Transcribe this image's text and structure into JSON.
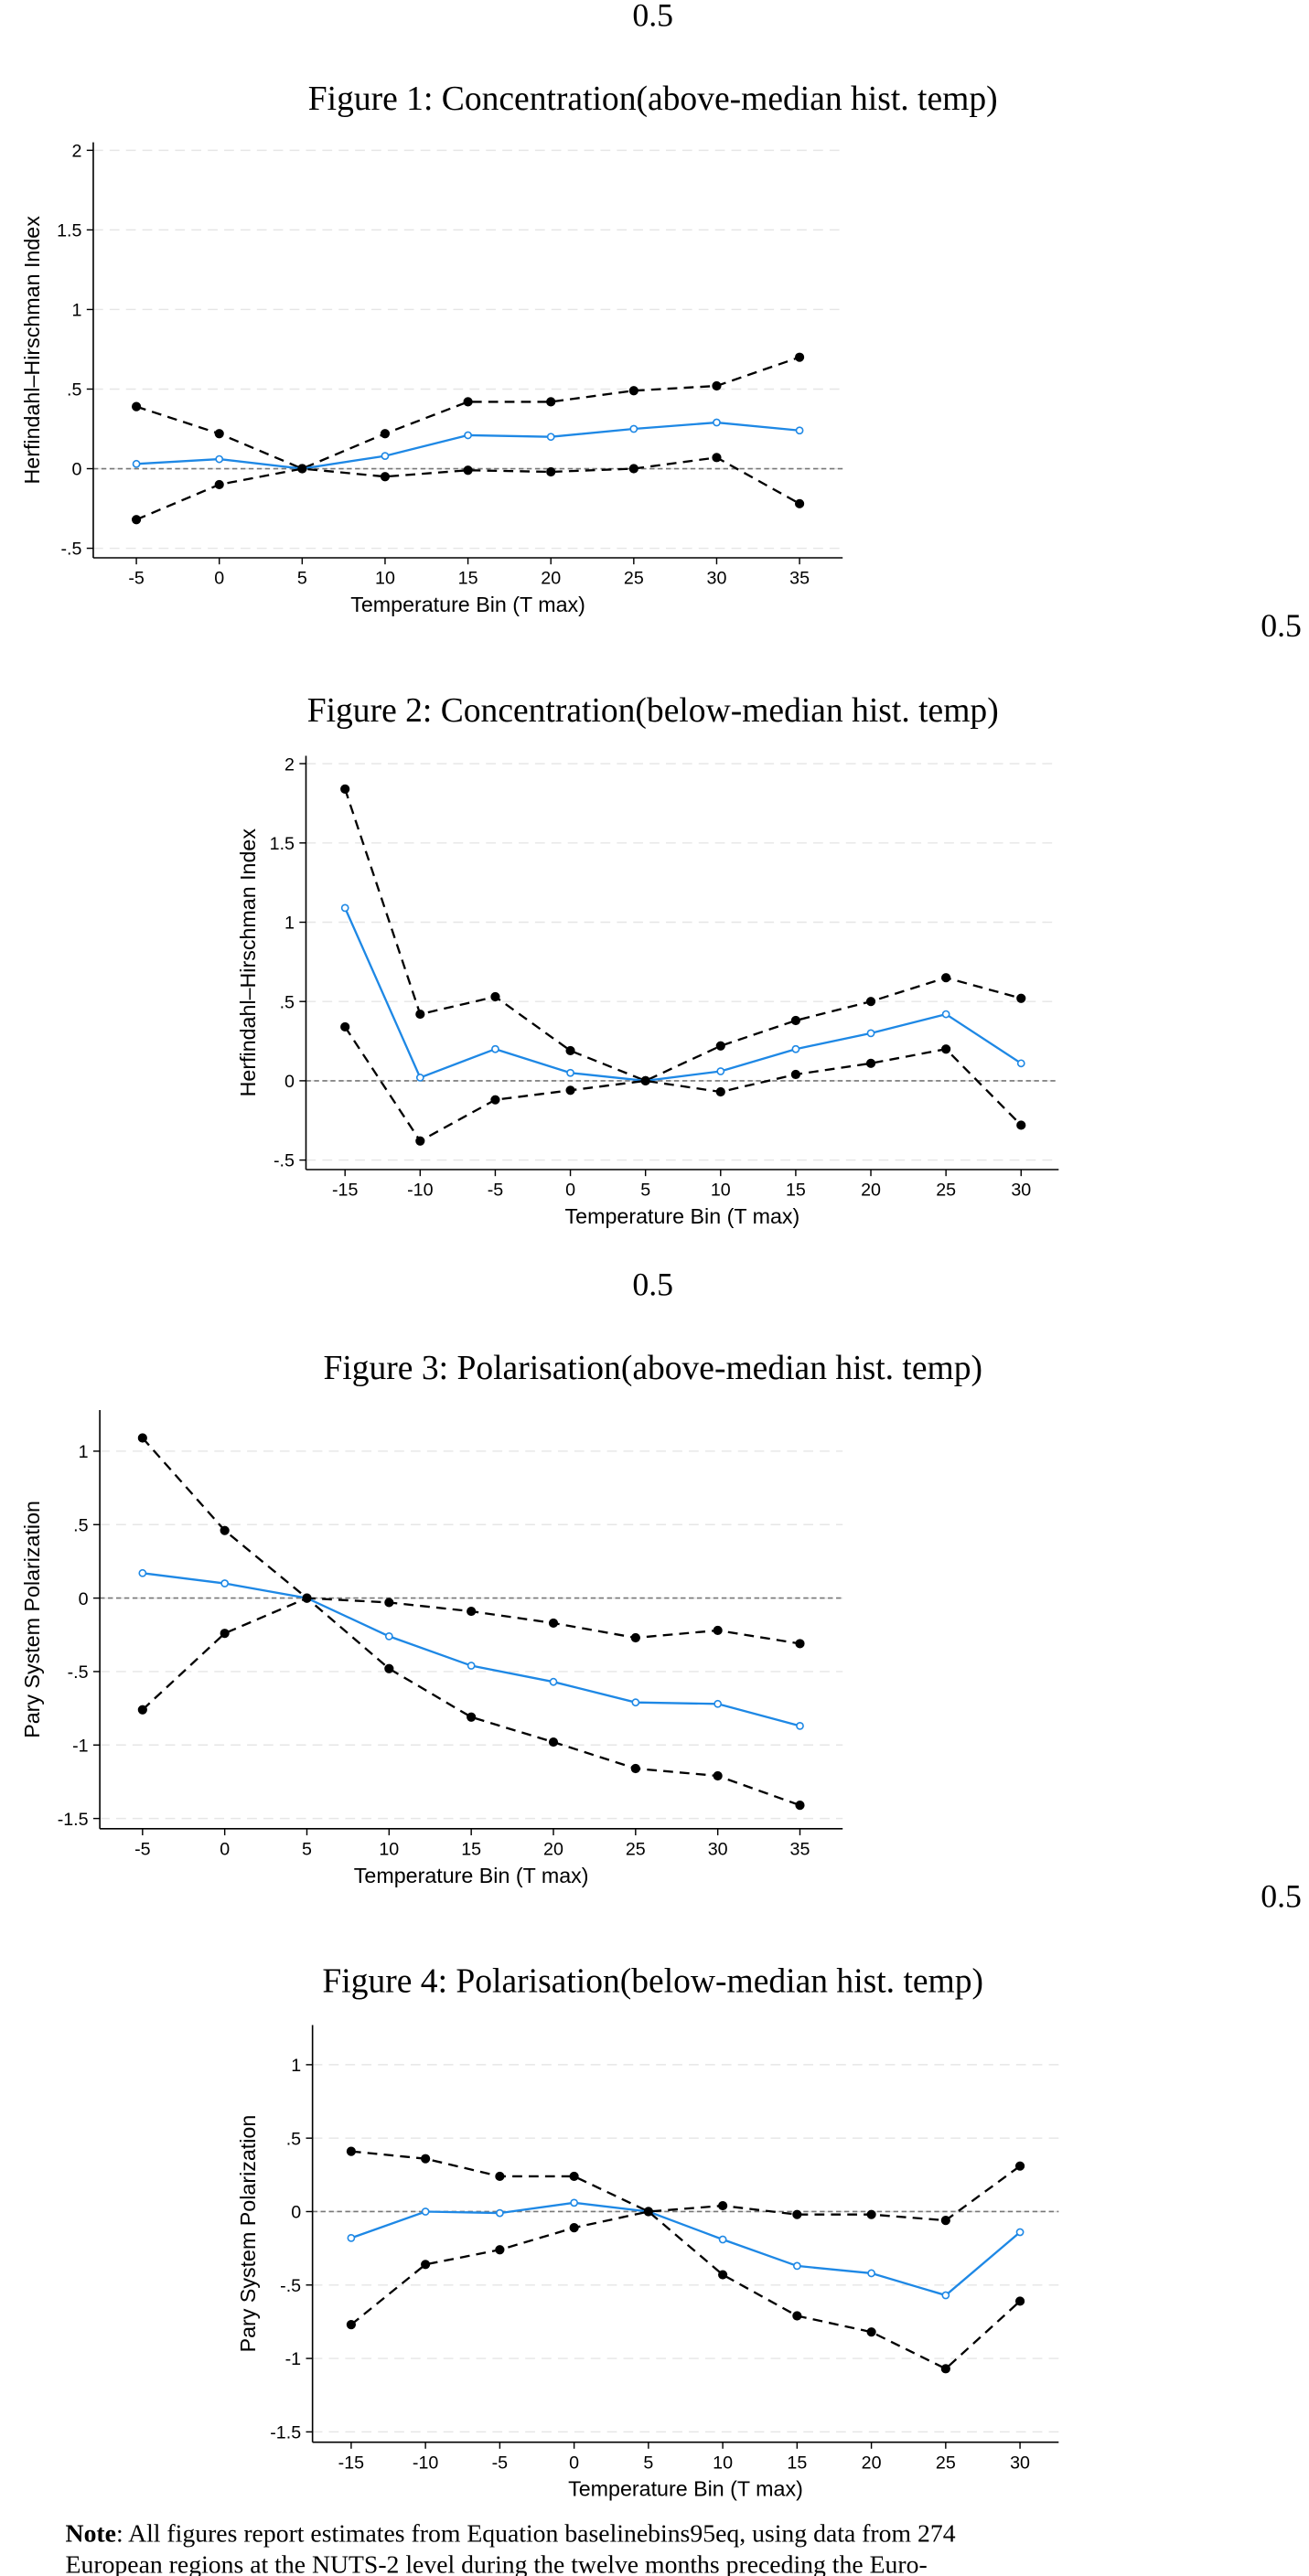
{
  "figure_labels": [
    "0.5",
    "0.5",
    "0.5",
    "0.5"
  ],
  "chart_data": [
    {
      "type": "line",
      "title": "Figure 1: Concentration(above-median hist. temp)",
      "x_label": "Temperature Bin (T max)",
      "y_label": "Herfindahl–Hirschman Index",
      "x": [
        -5,
        0,
        5,
        10,
        15,
        20,
        25,
        30,
        35
      ],
      "series": [
        {
          "color": "#000000",
          "line_style": "dashed",
          "marker": "filled",
          "values": [
            0.39,
            0.22,
            0,
            0.22,
            0.42,
            0.42,
            0.49,
            0.52,
            0.7
          ]
        },
        {
          "color": "#1e88e5",
          "line_style": "solid",
          "marker": "hollow",
          "values": [
            0.03,
            0.06,
            0,
            0.08,
            0.21,
            0.2,
            0.25,
            0.29,
            0.24
          ]
        },
        {
          "color": "#000000",
          "line_style": "dashed",
          "marker": "filled",
          "values": [
            -0.32,
            -0.1,
            0,
            -0.05,
            -0.01,
            -0.02,
            0.0,
            0.07,
            -0.22
          ]
        }
      ],
      "xlim": [
        -7.6,
        37.6
      ],
      "ylim": [
        -0.56,
        2.05
      ],
      "xticks": [
        -5,
        0,
        5,
        10,
        15,
        20,
        25,
        30,
        35
      ],
      "yticks": [
        {
          "value": -0.5,
          "label": "-.5"
        },
        0,
        {
          "value": 0.5,
          "label": ".5"
        },
        1,
        1.5,
        2
      ],
      "grid": true,
      "reference_line": 0
    },
    {
      "type": "line",
      "title": "Figure 2: Concentration(below-median hist. temp)",
      "x_label": "Temperature Bin (T max)",
      "y_label": "Herfindahl–Hirschman Index",
      "x": [
        -15,
        -10,
        -5,
        0,
        5,
        10,
        15,
        20,
        25,
        30
      ],
      "series": [
        {
          "color": "#000000",
          "line_style": "dashed",
          "marker": "filled",
          "values": [
            1.84,
            0.42,
            0.53,
            0.19,
            0,
            0.22,
            0.38,
            0.5,
            0.65,
            0.52
          ]
        },
        {
          "color": "#1e88e5",
          "line_style": "solid",
          "marker": "hollow",
          "values": [
            1.09,
            0.02,
            0.2,
            0.05,
            0,
            0.06,
            0.2,
            0.3,
            0.42,
            0.11
          ]
        },
        {
          "color": "#000000",
          "line_style": "dashed",
          "marker": "filled",
          "values": [
            0.34,
            -0.38,
            -0.12,
            -0.06,
            0,
            -0.07,
            0.04,
            0.11,
            0.2,
            -0.28
          ]
        }
      ],
      "xlim": [
        -17.6,
        32.5
      ],
      "ylim": [
        -0.56,
        2.05
      ],
      "xticks": [
        -15,
        -10,
        -5,
        0,
        5,
        10,
        15,
        20,
        25,
        30
      ],
      "yticks": [
        {
          "value": -0.5,
          "label": "-.5"
        },
        0,
        {
          "value": 0.5,
          "label": ".5"
        },
        1,
        1.5,
        2
      ],
      "grid": true,
      "reference_line": 0
    },
    {
      "type": "line",
      "title": "Figure 3: Polarisation(above-median hist. temp)",
      "x_label": "Temperature Bin (T max)",
      "y_label": "Pary System Polarization",
      "x": [
        -5,
        0,
        5,
        10,
        15,
        20,
        25,
        30,
        35
      ],
      "series": [
        {
          "color": "#000000",
          "line_style": "dashed",
          "marker": "filled",
          "values": [
            1.09,
            0.46,
            0,
            -0.03,
            -0.09,
            -0.17,
            -0.27,
            -0.22,
            -0.31
          ]
        },
        {
          "color": "#1e88e5",
          "line_style": "solid",
          "marker": "hollow",
          "values": [
            0.17,
            0.1,
            0,
            -0.26,
            -0.46,
            -0.57,
            -0.71,
            -0.72,
            -0.87
          ]
        },
        {
          "color": "#000000",
          "line_style": "dashed",
          "marker": "filled",
          "values": [
            -0.76,
            -0.24,
            0,
            -0.48,
            -0.81,
            -0.98,
            -1.16,
            -1.21,
            -1.41
          ]
        }
      ],
      "xlim": [
        -7.6,
        37.6
      ],
      "ylim": [
        -1.57,
        1.28
      ],
      "xticks": [
        -5,
        0,
        5,
        10,
        15,
        20,
        25,
        30,
        35
      ],
      "yticks": [
        -1.5,
        -1,
        {
          "value": -0.5,
          "label": "-.5"
        },
        0,
        {
          "value": 0.5,
          "label": ".5"
        },
        1
      ],
      "grid": true,
      "reference_line": 0
    },
    {
      "type": "line",
      "title": "Figure 4: Polarisation(below-median hist. temp)",
      "x_label": "Temperature Bin (T max)",
      "y_label": "Pary System Polarization",
      "x": [
        -15,
        -10,
        -5,
        0,
        5,
        10,
        15,
        20,
        25,
        30
      ],
      "series": [
        {
          "color": "#000000",
          "line_style": "dashed",
          "marker": "filled",
          "values": [
            0.41,
            0.36,
            0.24,
            0.24,
            0,
            0.04,
            -0.02,
            -0.02,
            -0.06,
            0.31
          ]
        },
        {
          "color": "#1e88e5",
          "line_style": "solid",
          "marker": "hollow",
          "values": [
            -0.18,
            0.0,
            -0.01,
            0.06,
            0,
            -0.19,
            -0.37,
            -0.42,
            -0.57,
            -0.14
          ]
        },
        {
          "color": "#000000",
          "line_style": "dashed",
          "marker": "filled",
          "values": [
            -0.77,
            -0.36,
            -0.26,
            -0.11,
            0,
            -0.43,
            -0.71,
            -0.82,
            -1.07,
            -0.61
          ]
        }
      ],
      "xlim": [
        -17.6,
        32.6
      ],
      "ylim": [
        -1.57,
        1.27
      ],
      "xticks": [
        -15,
        -10,
        -5,
        0,
        5,
        10,
        15,
        20,
        25,
        30
      ],
      "yticks": [
        -1.5,
        -1,
        {
          "value": -0.5,
          "label": "-.5"
        },
        0,
        {
          "value": 0.5,
          "label": ".5"
        },
        1
      ],
      "grid": true,
      "reference_line": 0
    }
  ],
  "note": {
    "label": "Note",
    "lines": [
      ": All figures report estimates from Equation baselinebins95eq, using data from 274",
      "European regions at the NUTS-2 level during the twelve months preceding the Euro-"
    ]
  }
}
